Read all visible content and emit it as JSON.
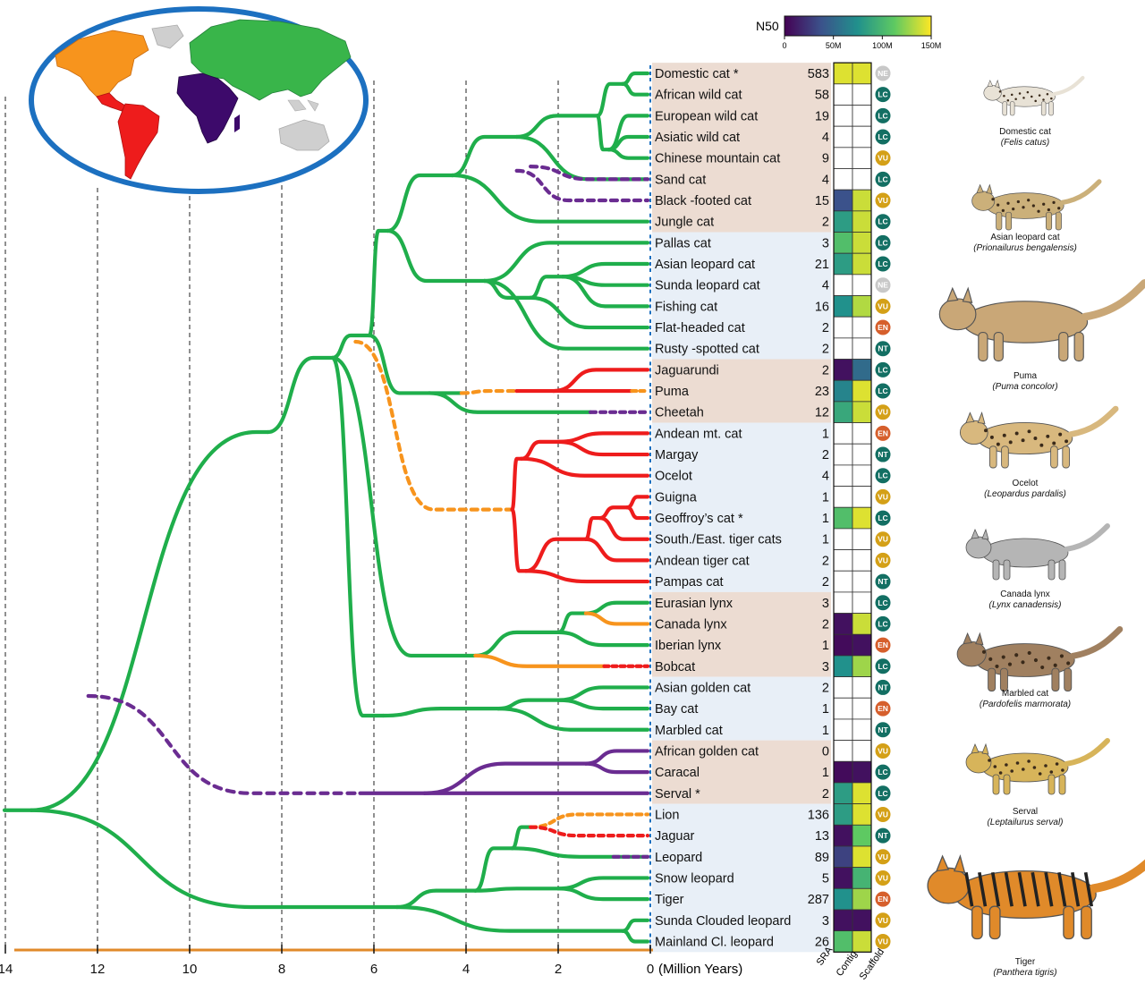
{
  "colorbar": {
    "title": "N50",
    "ticks": [
      "0",
      "50M",
      "100M",
      "150M"
    ]
  },
  "axis": {
    "ticks": [
      "14",
      "12",
      "10",
      "8",
      "6",
      "4",
      "2",
      "0"
    ],
    "unit_label": "(Million Years)"
  },
  "column_headers": [
    "SRA",
    "Contig",
    "Scaffold"
  ],
  "colors": {
    "tree": "#1fae4b",
    "americas": "#ee1c1c",
    "north_america": "#f7941d",
    "africa": "#6a2c91",
    "band_tan": "#ecdcd2",
    "band_blue": "#e8eff7",
    "ring": "#1c70c0",
    "axis_line": "#e08a2a",
    "status_LC": "#136f63",
    "status_VU": "#d4a017",
    "status_EN": "#d65f2c",
    "status_NT": "#136f63",
    "status_NE": "#c8c8c8"
  },
  "species": [
    {
      "name": "Domestic cat *",
      "sra": "583",
      "contig": 0.95,
      "scaffold": 0.95,
      "status": "NE"
    },
    {
      "name": "African wild cat",
      "sra": "58",
      "contig": null,
      "scaffold": null,
      "status": "LC"
    },
    {
      "name": "European wild cat",
      "sra": "19",
      "contig": null,
      "scaffold": null,
      "status": "LC"
    },
    {
      "name": "Asiatic wild cat",
      "sra": "4",
      "contig": null,
      "scaffold": null,
      "status": "LC"
    },
    {
      "name": "Chinese mountain cat",
      "sra": "9",
      "contig": null,
      "scaffold": null,
      "status": "VU"
    },
    {
      "name": "Sand cat",
      "sra": "4",
      "contig": null,
      "scaffold": null,
      "status": "LC"
    },
    {
      "name": "Black -footed cat",
      "sra": "15",
      "contig": 0.25,
      "scaffold": 0.92,
      "status": "VU"
    },
    {
      "name": "Jungle cat",
      "sra": "2",
      "contig": 0.55,
      "scaffold": 0.92,
      "status": "LC"
    },
    {
      "name": "Pallas cat",
      "sra": "3",
      "contig": 0.7,
      "scaffold": 0.92,
      "status": "LC"
    },
    {
      "name": "Asian leopard cat",
      "sra": "21",
      "contig": 0.55,
      "scaffold": 0.92,
      "status": "LC"
    },
    {
      "name": "Sunda leopard cat",
      "sra": "4",
      "contig": null,
      "scaffold": null,
      "status": "NE"
    },
    {
      "name": "Fishing cat",
      "sra": "16",
      "contig": 0.5,
      "scaffold": 0.88,
      "status": "VU"
    },
    {
      "name": "Flat-headed cat",
      "sra": "2",
      "contig": null,
      "scaffold": null,
      "status": "EN"
    },
    {
      "name": "Rusty -spotted cat",
      "sra": "2",
      "contig": null,
      "scaffold": null,
      "status": "NT"
    },
    {
      "name": "Jaguarundi",
      "sra": "2",
      "contig": 0.05,
      "scaffold": 0.35,
      "status": "LC"
    },
    {
      "name": "Puma",
      "sra": "23",
      "contig": 0.45,
      "scaffold": 0.95,
      "status": "LC"
    },
    {
      "name": "Cheetah",
      "sra": "12",
      "contig": 0.6,
      "scaffold": 0.92,
      "status": "VU"
    },
    {
      "name": "Andean  mt. cat",
      "sra": "1",
      "contig": null,
      "scaffold": null,
      "status": "EN"
    },
    {
      "name": "Margay",
      "sra": "2",
      "contig": null,
      "scaffold": null,
      "status": "NT"
    },
    {
      "name": "Ocelot",
      "sra": "4",
      "contig": null,
      "scaffold": null,
      "status": "LC"
    },
    {
      "name": "Guigna",
      "sra": "1",
      "contig": null,
      "scaffold": null,
      "status": "VU"
    },
    {
      "name": "Geoffroy’s cat *",
      "sra": "1",
      "contig": 0.7,
      "scaffold": 0.95,
      "status": "LC"
    },
    {
      "name": "South./East. tiger cats",
      "sra": "1",
      "contig": null,
      "scaffold": null,
      "status": "VU"
    },
    {
      "name": "Andean tiger cat",
      "sra": "2",
      "contig": null,
      "scaffold": null,
      "status": "VU"
    },
    {
      "name": "Pampas cat",
      "sra": "2",
      "contig": null,
      "scaffold": null,
      "status": "NT"
    },
    {
      "name": "Eurasian lynx",
      "sra": "3",
      "contig": null,
      "scaffold": null,
      "status": "LC"
    },
    {
      "name": "Canada lynx",
      "sra": "2",
      "contig": 0.05,
      "scaffold": 0.92,
      "status": "LC"
    },
    {
      "name": "Iberian  lynx",
      "sra": "1",
      "contig": 0.03,
      "scaffold": 0.05,
      "status": "EN"
    },
    {
      "name": "Bobcat",
      "sra": "3",
      "contig": 0.5,
      "scaffold": 0.85,
      "status": "LC"
    },
    {
      "name": "Asian golden cat",
      "sra": "2",
      "contig": null,
      "scaffold": null,
      "status": "NT"
    },
    {
      "name": "Bay cat",
      "sra": "1",
      "contig": null,
      "scaffold": null,
      "status": "EN"
    },
    {
      "name": "Marbled cat",
      "sra": "1",
      "contig": null,
      "scaffold": null,
      "status": "NT"
    },
    {
      "name": "African golden cat",
      "sra": "0",
      "contig": null,
      "scaffold": null,
      "status": "VU"
    },
    {
      "name": "Caracal",
      "sra": "1",
      "contig": 0.03,
      "scaffold": 0.05,
      "status": "LC"
    },
    {
      "name": "Serval *",
      "sra": "2",
      "contig": 0.55,
      "scaffold": 0.95,
      "status": "LC"
    },
    {
      "name": "Lion",
      "sra": "136",
      "contig": 0.55,
      "scaffold": 0.95,
      "status": "VU"
    },
    {
      "name": "Jaguar",
      "sra": "13",
      "contig": 0.05,
      "scaffold": 0.75,
      "status": "NT"
    },
    {
      "name": "Leopard",
      "sra": "89",
      "contig": 0.2,
      "scaffold": 0.95,
      "status": "VU"
    },
    {
      "name": "Snow leopard",
      "sra": "5",
      "contig": 0.05,
      "scaffold": 0.65,
      "status": "VU"
    },
    {
      "name": "Tiger",
      "sra": "287",
      "contig": 0.5,
      "scaffold": 0.85,
      "status": "EN"
    },
    {
      "name": "Sunda Clouded leopard",
      "sra": "3",
      "contig": 0.05,
      "scaffold": 0.05,
      "status": "VU"
    },
    {
      "name": "Mainland Cl. leopard",
      "sra": "26",
      "contig": 0.7,
      "scaffold": 0.92,
      "status": "VU"
    }
  ],
  "bands": [
    {
      "from": 0,
      "to": 7,
      "tone": "tan"
    },
    {
      "from": 8,
      "to": 13,
      "tone": "blue"
    },
    {
      "from": 14,
      "to": 16,
      "tone": "tan"
    },
    {
      "from": 17,
      "to": 24,
      "tone": "blue"
    },
    {
      "from": 25,
      "to": 28,
      "tone": "tan"
    },
    {
      "from": 29,
      "to": 31,
      "tone": "blue"
    },
    {
      "from": 32,
      "to": 34,
      "tone": "tan"
    },
    {
      "from": 35,
      "to": 41,
      "tone": "blue"
    }
  ],
  "illustrations": [
    {
      "common": "Domestic cat",
      "latin": "(Felis catus)"
    },
    {
      "common": "Asian leopard cat",
      "latin": "(Prionailurus bengalensis)"
    },
    {
      "common": "Puma",
      "latin": "(Puma concolor)"
    },
    {
      "common": "Ocelot",
      "latin": "(Leopardus pardalis)"
    },
    {
      "common": "Canada lynx",
      "latin": "(Lynx canadensis)"
    },
    {
      "common": "Marbled cat",
      "latin": "(Pardofelis marmorata)"
    },
    {
      "common": "Serval",
      "latin": "(Leptailurus serval)"
    },
    {
      "common": "Tiger",
      "latin": "(Panthera tigris)"
    }
  ]
}
